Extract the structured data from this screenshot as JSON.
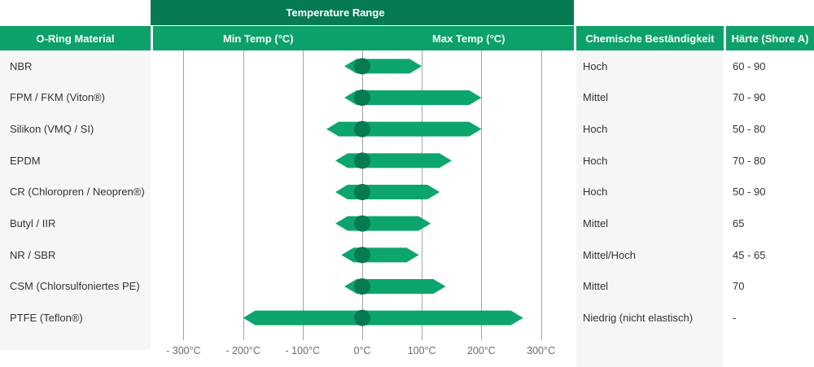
{
  "banner": {
    "title": "Temperature Range"
  },
  "headers": {
    "material": "O-Ring Material",
    "min_temp": "Min Temp (°C)",
    "max_temp": "Max Temp (°C)",
    "chemical": "Chemische Beständigkeit",
    "hardness": "Härte (Shore A)"
  },
  "axis": {
    "unit": "°C",
    "ticks": [
      {
        "value": -300,
        "label": "- 300°C"
      },
      {
        "value": -200,
        "label": "- 200°C"
      },
      {
        "value": -100,
        "label": "- 100°C"
      },
      {
        "value": 0,
        "label": "0°C"
      },
      {
        "value": 100,
        "label": "100°C"
      },
      {
        "value": 200,
        "label": "200°C"
      },
      {
        "value": 300,
        "label": "300°C"
      }
    ]
  },
  "rows": [
    {
      "material": "NBR",
      "min": -30,
      "max": 100,
      "chemical": "Hoch",
      "hardness": "60 - 90"
    },
    {
      "material": "FPM / FKM (Viton®)",
      "min": -30,
      "max": 200,
      "chemical": "Mittel",
      "hardness": "70 - 90"
    },
    {
      "material": "Silikon (VMQ / SI)",
      "min": -60,
      "max": 200,
      "chemical": "Hoch",
      "hardness": "50 - 80"
    },
    {
      "material": "EPDM",
      "min": -45,
      "max": 150,
      "chemical": "Hoch",
      "hardness": "70 - 80"
    },
    {
      "material": "CR (Chloropren / Neopren®)",
      "min": -45,
      "max": 130,
      "chemical": "Hoch",
      "hardness": "50 - 90"
    },
    {
      "material": "Butyl / IIR",
      "min": -45,
      "max": 115,
      "chemical": "Mittel",
      "hardness": "65"
    },
    {
      "material": "NR / SBR",
      "min": -35,
      "max": 95,
      "chemical": "Mittel/Hoch",
      "hardness": "45 - 65"
    },
    {
      "material": "CSM (Chlorsulfoniertes PE)",
      "min": -30,
      "max": 140,
      "chemical": "Mittel",
      "hardness": "70"
    },
    {
      "material": "PTFE (Teflon®)",
      "min": -200,
      "max": 270,
      "chemical": "Niedrig (nicht elastisch)",
      "hardness": "-"
    }
  ],
  "chart_data": {
    "type": "bar",
    "subtype": "horizontal-range-arrows",
    "title": "Temperature Range",
    "categories": [
      "NBR",
      "FPM / FKM (Viton®)",
      "Silikon (VMQ / SI)",
      "EPDM",
      "CR (Chloropren / Neopren®)",
      "Butyl / IIR",
      "NR / SBR",
      "CSM (Chlorsulfoniertes PE)",
      "PTFE (Teflon®)"
    ],
    "series": [
      {
        "name": "Min Temp (°C)",
        "values": [
          -30,
          -30,
          -60,
          -45,
          -45,
          -45,
          -35,
          -30,
          -200
        ]
      },
      {
        "name": "Max Temp (°C)",
        "values": [
          100,
          200,
          200,
          150,
          130,
          115,
          95,
          140,
          270
        ]
      }
    ],
    "xlim": [
      -355,
      355
    ],
    "x_ticks": [
      -300,
      -200,
      -100,
      0,
      100,
      200,
      300
    ],
    "grid": true,
    "zero_marker": true,
    "legend": false
  },
  "colors": {
    "banner_green": "#067a52",
    "header_green": "#0ba169",
    "bar_green": "#0ca56d",
    "dot_green": "#067a50",
    "panel_gray": "#f6f6f6",
    "gridline_gray": "#a3a3a3",
    "text_dark": "#333333",
    "axis_text": "#6b6b6b"
  }
}
